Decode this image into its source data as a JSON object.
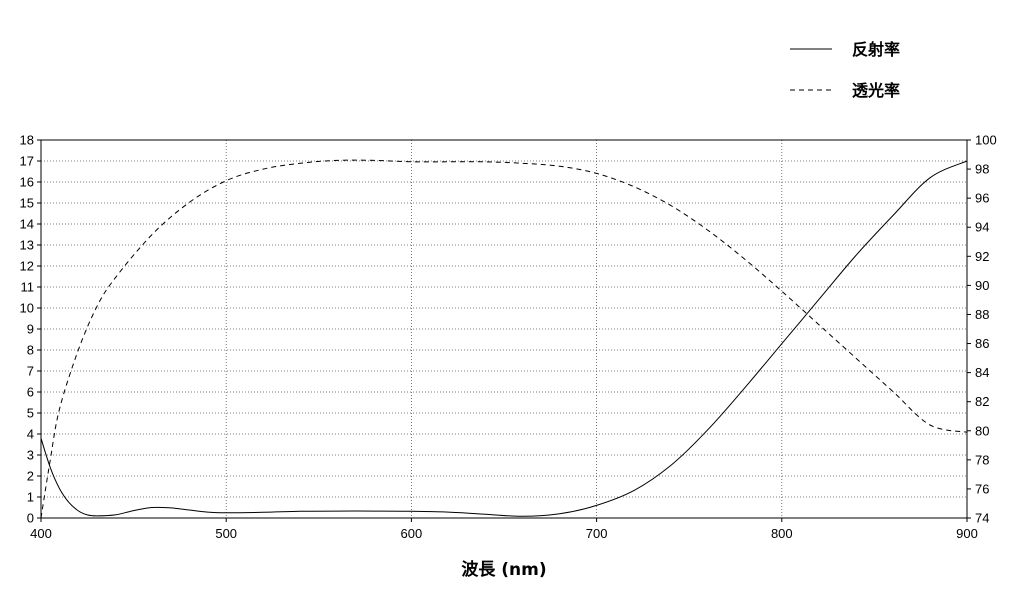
{
  "chart_data": {
    "type": "line",
    "xlabel": "波長 (nm)",
    "xlim": [
      400,
      900
    ],
    "ylim_left": [
      0,
      18
    ],
    "ylim_right": [
      74,
      100
    ],
    "grid": true,
    "legend_position": "top-right",
    "x_ticks": [
      "400",
      "500",
      "600",
      "700",
      "800",
      "900"
    ],
    "y_left_ticks": [
      "0",
      "1",
      "2",
      "3",
      "4",
      "5",
      "6",
      "7",
      "8",
      "9",
      "10",
      "11",
      "12",
      "13",
      "14",
      "15",
      "16",
      "17",
      "18"
    ],
    "y_right_ticks": [
      "74",
      "76",
      "78",
      "80",
      "82",
      "84",
      "86",
      "88",
      "90",
      "92",
      "94",
      "96",
      "98",
      "100"
    ],
    "series": [
      {
        "name": "反射率",
        "axis": "left",
        "style": "solid",
        "x": [
          400,
          405,
          410,
          415,
          420,
          425,
          430,
          440,
          450,
          460,
          470,
          480,
          490,
          500,
          520,
          540,
          560,
          580,
          600,
          620,
          640,
          660,
          680,
          700,
          720,
          740,
          760,
          780,
          800,
          820,
          840,
          860,
          880,
          900
        ],
        "values": [
          3.8,
          2.4,
          1.4,
          0.75,
          0.35,
          0.15,
          0.1,
          0.15,
          0.35,
          0.5,
          0.48,
          0.38,
          0.28,
          0.25,
          0.27,
          0.32,
          0.33,
          0.33,
          0.32,
          0.28,
          0.18,
          0.08,
          0.2,
          0.6,
          1.3,
          2.5,
          4.2,
          6.2,
          8.3,
          10.4,
          12.5,
          14.4,
          16.2,
          17.0
        ]
      },
      {
        "name": "透光率",
        "axis": "right",
        "style": "dashed",
        "x": [
          400,
          405,
          410,
          420,
          430,
          440,
          460,
          480,
          500,
          520,
          540,
          560,
          580,
          600,
          620,
          640,
          660,
          680,
          700,
          720,
          740,
          760,
          780,
          800,
          820,
          840,
          860,
          880,
          900
        ],
        "values": [
          74.0,
          78.0,
          81.5,
          85.5,
          88.5,
          90.5,
          93.5,
          95.7,
          97.2,
          98.0,
          98.4,
          98.6,
          98.6,
          98.5,
          98.5,
          98.5,
          98.4,
          98.2,
          97.7,
          96.8,
          95.5,
          93.8,
          91.8,
          89.6,
          87.3,
          85.0,
          82.7,
          80.4,
          79.9
        ]
      }
    ]
  }
}
